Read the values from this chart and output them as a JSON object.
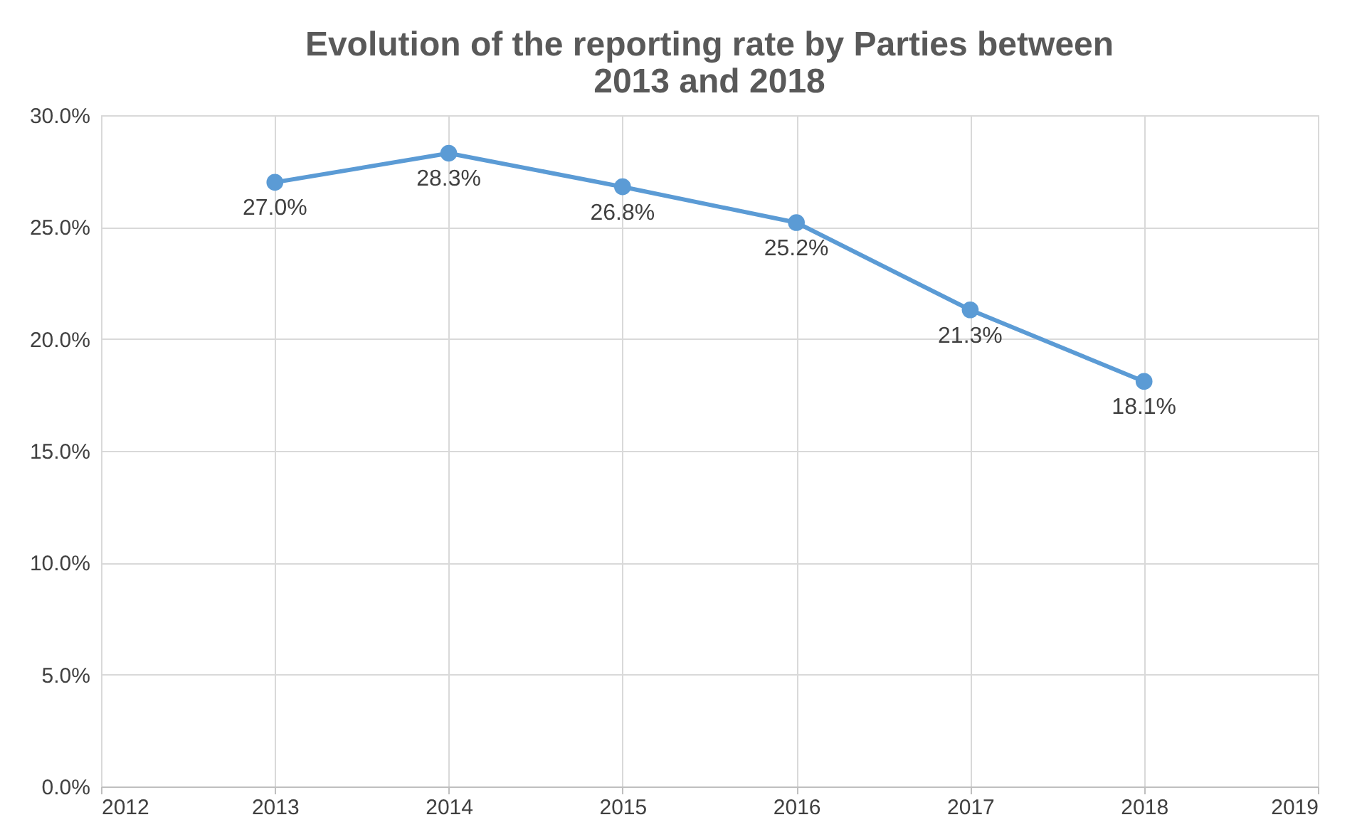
{
  "chart_data": {
    "type": "line",
    "title": "Evolution of the reporting rate by Parties between 2013 and 2018",
    "x": [
      2013,
      2014,
      2015,
      2016,
      2017,
      2018
    ],
    "series": [
      {
        "color": "#5b9bd5",
        "values": [
          27.0,
          28.3,
          26.8,
          25.2,
          21.3,
          18.1
        ],
        "value_labels": [
          "27.0%",
          "28.3%",
          "26.8%",
          "25.2%",
          "21.3%",
          "18.1%"
        ]
      }
    ],
    "xlim": [
      2012,
      2019
    ],
    "xticks": [
      2012,
      2013,
      2014,
      2015,
      2016,
      2017,
      2018,
      2019
    ],
    "ylim": [
      0,
      30
    ],
    "yticks": [
      {
        "value": 0,
        "label": "0.0%"
      },
      {
        "value": 5,
        "label": "5.0%"
      },
      {
        "value": 10,
        "label": "10.0%"
      },
      {
        "value": 15,
        "label": "15.0%"
      },
      {
        "value": 20,
        "label": "20.0%"
      },
      {
        "value": 25,
        "label": "25.0%"
      },
      {
        "value": 30,
        "label": "30.0%"
      }
    ],
    "grid": true,
    "marker": "circle",
    "line_style": "solid"
  }
}
